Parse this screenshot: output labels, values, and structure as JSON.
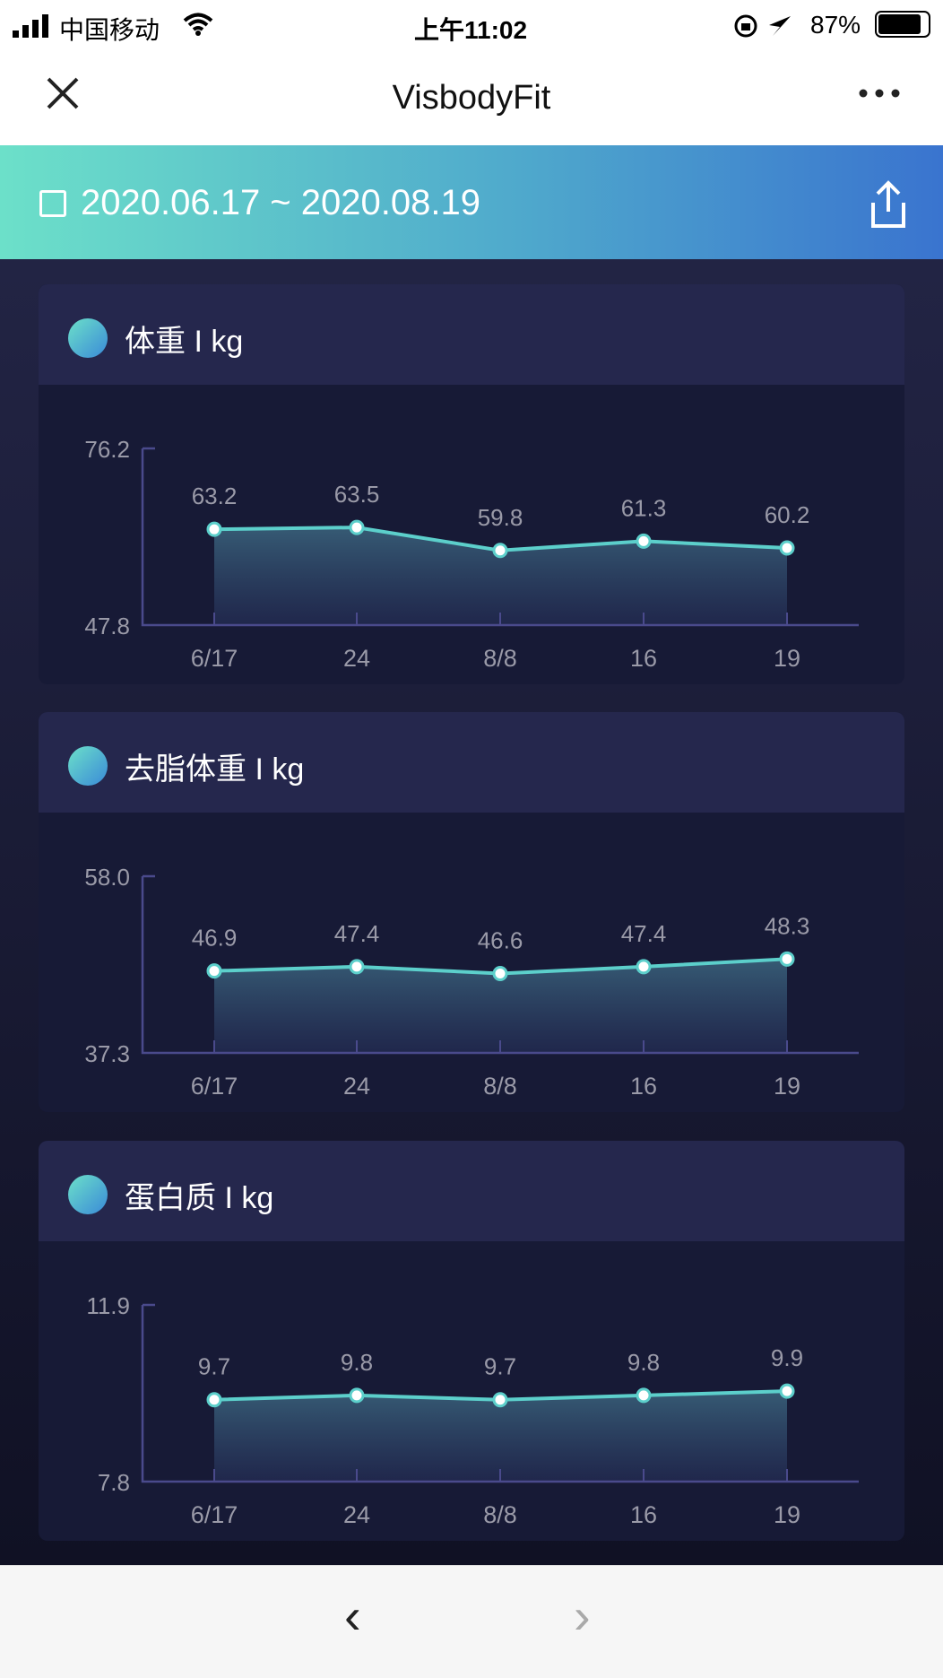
{
  "status": {
    "carrier": "中国移动",
    "time": "上午11:02",
    "battery": "87%"
  },
  "nav": {
    "title": "VisbodyFit",
    "close_icon": "close-icon",
    "more_icon": "more-icon"
  },
  "banner": {
    "date_range": "2020.06.17 ~ 2020.08.19",
    "share_icon": "share-icon"
  },
  "colors": {
    "line": "#5ccfcb",
    "axis": "#4a4a8c",
    "tick_text": "#9a9aa8"
  },
  "chart_data": [
    {
      "type": "area",
      "title": "体重 I kg",
      "icon": "scale-icon",
      "categories": [
        "6/17",
        "24",
        "8/8",
        "16",
        "19"
      ],
      "values": [
        63.2,
        63.5,
        59.8,
        61.3,
        60.2
      ],
      "ylim": [
        47.8,
        76.2
      ],
      "yticks": [
        "76.2",
        "47.8"
      ]
    },
    {
      "type": "area",
      "title": "去脂体重 I kg",
      "icon": "scale-icon",
      "categories": [
        "6/17",
        "24",
        "8/8",
        "16",
        "19"
      ],
      "values": [
        46.9,
        47.4,
        46.6,
        47.4,
        48.3
      ],
      "ylim": [
        37.3,
        58.0
      ],
      "yticks": [
        "58.0",
        "37.3"
      ]
    },
    {
      "type": "area",
      "title": "蛋白质 I kg",
      "icon": "molecule-icon",
      "categories": [
        "6/17",
        "24",
        "8/8",
        "16",
        "19"
      ],
      "values": [
        9.7,
        9.8,
        9.7,
        9.8,
        9.9
      ],
      "ylim": [
        7.8,
        11.9
      ],
      "yticks": [
        "11.9",
        "7.8"
      ]
    }
  ],
  "bottom": {
    "back": "‹",
    "forward": "›"
  }
}
